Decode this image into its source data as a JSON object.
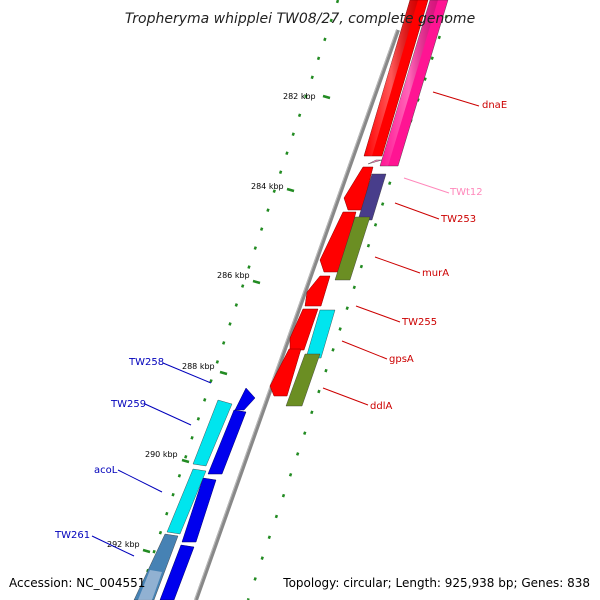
{
  "title": "Tropheryma whipplei TW08/27, complete genome",
  "accession": "Accession: NC_004551",
  "summary": "Topology: circular; Length: 925,938 bp; Genes: 838",
  "ticks": [
    "282 kbp",
    "284 kbp",
    "286 kbp",
    "288 kbp",
    "290 kbp",
    "292 kbp"
  ],
  "genes_right": [
    {
      "name": "dnaE",
      "color": "#cc0000"
    },
    {
      "name": "TWt12",
      "color": "#ff88bb"
    },
    {
      "name": "TW253",
      "color": "#cc0000"
    },
    {
      "name": "murA",
      "color": "#cc0000"
    },
    {
      "name": "TW255",
      "color": "#cc0000"
    },
    {
      "name": "gpsA",
      "color": "#cc0000"
    },
    {
      "name": "ddlA",
      "color": "#cc0000"
    }
  ],
  "genes_left": [
    {
      "name": "TW258",
      "color": "#0000bb"
    },
    {
      "name": "TW259",
      "color": "#0000bb"
    },
    {
      "name": "acoL",
      "color": "#0000bb"
    },
    {
      "name": "TW261",
      "color": "#0000bb"
    }
  ],
  "colors": {
    "cds_forward": "#ff0000",
    "cds_reverse": "#0000ee",
    "cog_pink": "#ff1493",
    "cog_purple": "#483d8b",
    "cog_olive": "#6b8e23",
    "cog_cyan": "#00e5ee",
    "cog_steel": "#4682b4",
    "backbone": "#808080",
    "gc_marks": "#228b22"
  }
}
